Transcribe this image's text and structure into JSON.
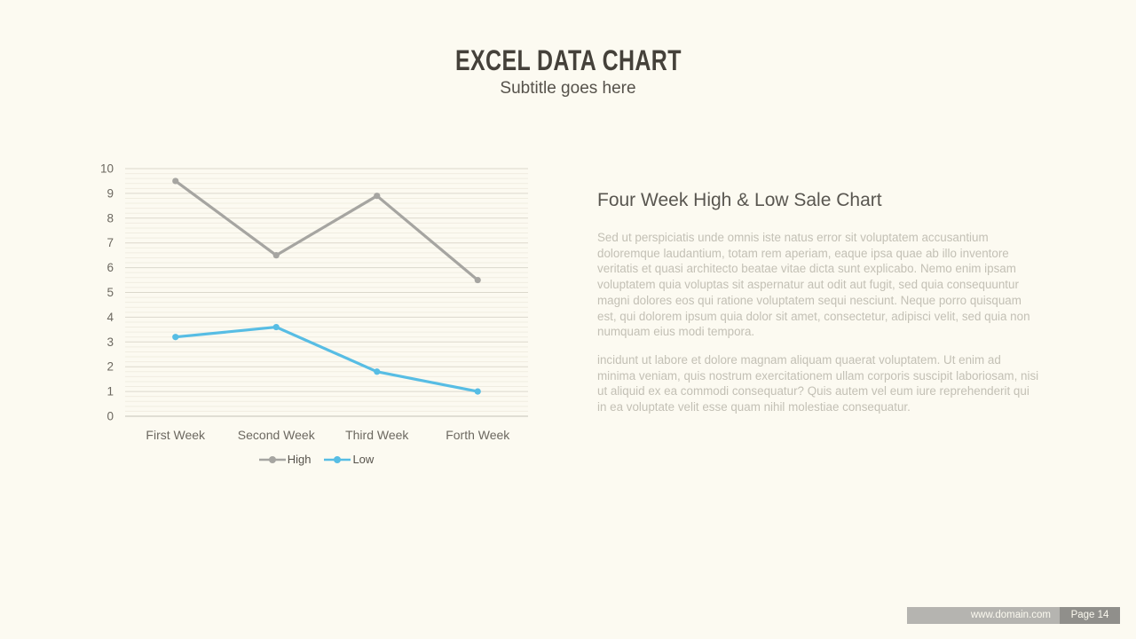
{
  "slide": {
    "title": "EXCEL DATA CHART",
    "subtitle": "Subtitle goes here",
    "background": "#FCFAF1"
  },
  "content": {
    "heading": "Four Week High & Low Sale Chart",
    "paragraph1": "Sed ut perspiciatis unde omnis iste natus error sit voluptatem accusantium doloremque laudantium, totam rem aperiam, eaque ipsa quae ab illo inventore veritatis et quasi architecto beatae vitae dicta sunt explicabo. Nemo enim ipsam voluptatem quia voluptas sit aspernatur aut odit aut fugit, sed quia consequuntur magni dolores eos qui ratione voluptatem sequi nesciunt. Neque porro quisquam est, qui dolorem ipsum quia dolor sit amet, consectetur, adipisci velit, sed quia non numquam eius modi tempora.",
    "paragraph2": "incidunt ut labore et dolore magnam aliquam quaerat voluptatem. Ut enim ad minima veniam, quis nostrum exercitationem ullam corporis suscipit laboriosam, nisi ut aliquid ex ea commodi consequatur? Quis autem vel eum iure reprehenderit qui in ea voluptate velit esse quam nihil molestiae consequatur."
  },
  "footer": {
    "website": "www.domain.com",
    "page": "Page 14"
  },
  "chart_data": {
    "type": "line",
    "title": "",
    "categories": [
      "First Week",
      "Second Week",
      "Third Week",
      "Forth Week"
    ],
    "series": [
      {
        "name": "High",
        "color": "#A6A5A1",
        "values": [
          9.5,
          6.5,
          8.9,
          5.5
        ]
      },
      {
        "name": "Low",
        "color": "#57BDE4",
        "values": [
          3.2,
          3.6,
          1.8,
          1.0
        ]
      }
    ],
    "ylim": [
      0,
      10
    ],
    "y_major_step": 1,
    "y_minor_step": 0.2,
    "grid": true,
    "legend_position": "bottom",
    "colors": {
      "major_grid": "#DBD8CC",
      "minor_grid": "#F0EDE1",
      "axis_line": "#C5C2B6",
      "tick_label": "#6C6860"
    }
  }
}
